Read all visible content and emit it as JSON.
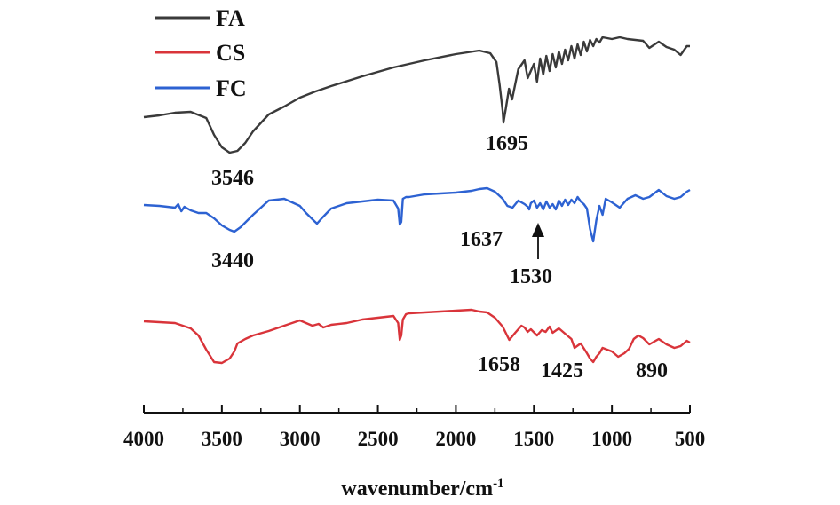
{
  "chart_data": {
    "type": "line",
    "xlabel": "wavenumber/cm",
    "xlabel_superscript": "-1",
    "xlim": [
      4000,
      500
    ],
    "x_reversed": true,
    "x_ticks": [
      "4000",
      "3500",
      "3000",
      "2500",
      "2000",
      "1500",
      "1000",
      "500"
    ],
    "y_axis_visible": false,
    "grid": false,
    "legend_position": "top-left",
    "series": [
      {
        "name": "FA",
        "color": "#3a3a3a",
        "x": [
          4000,
          3900,
          3800,
          3700,
          3600,
          3550,
          3500,
          3450,
          3400,
          3350,
          3300,
          3200,
          3100,
          3000,
          2900,
          2800,
          2600,
          2400,
          2200,
          2000,
          1850,
          1780,
          1740,
          1720,
          1700,
          1695,
          1680,
          1660,
          1640,
          1600,
          1560,
          1540,
          1500,
          1480,
          1460,
          1440,
          1420,
          1400,
          1380,
          1360,
          1340,
          1320,
          1300,
          1280,
          1260,
          1240,
          1220,
          1200,
          1180,
          1160,
          1140,
          1120,
          1100,
          1080,
          1060,
          1000,
          950,
          900,
          850,
          800,
          760,
          700,
          650,
          600,
          560,
          520,
          500
        ],
        "y": [
          132,
          130,
          127,
          126,
          133,
          152,
          166,
          172,
          170,
          161,
          148,
          129,
          120,
          110,
          103,
          97,
          86,
          76,
          68,
          61,
          57,
          60,
          70,
          95,
          125,
          138,
          122,
          100,
          112,
          78,
          68,
          88,
          72,
          92,
          66,
          84,
          63,
          80,
          61,
          76,
          58,
          72,
          56,
          68,
          52,
          66,
          50,
          62,
          47,
          58,
          45,
          52,
          44,
          48,
          42,
          44,
          42,
          44,
          45,
          46,
          54,
          47,
          53,
          56,
          62,
          52,
          52
        ]
      },
      {
        "name": "FC",
        "color": "#2d62d2",
        "x": [
          4000,
          3900,
          3800,
          3780,
          3760,
          3740,
          3700,
          3650,
          3600,
          3550,
          3500,
          3450,
          3420,
          3380,
          3300,
          3200,
          3100,
          3000,
          2960,
          2920,
          2890,
          2860,
          2800,
          2700,
          2600,
          2500,
          2400,
          2370,
          2360,
          2350,
          2340,
          2320,
          2300,
          2200,
          2100,
          2000,
          1900,
          1850,
          1800,
          1750,
          1700,
          1670,
          1637,
          1600,
          1560,
          1540,
          1530,
          1520,
          1500,
          1480,
          1460,
          1440,
          1420,
          1400,
          1380,
          1360,
          1340,
          1320,
          1300,
          1280,
          1260,
          1240,
          1220,
          1200,
          1180,
          1160,
          1140,
          1120,
          1100,
          1080,
          1060,
          1040,
          1000,
          950,
          900,
          850,
          800,
          760,
          700,
          650,
          600,
          560,
          520,
          500
        ],
        "y": [
          231,
          232,
          234,
          230,
          238,
          233,
          237,
          240,
          240,
          246,
          254,
          259,
          261,
          256,
          242,
          226,
          224,
          232,
          240,
          247,
          252,
          246,
          235,
          229,
          227,
          225,
          226,
          235,
          253,
          250,
          224,
          222,
          222,
          219,
          218,
          217,
          215,
          213,
          212,
          216,
          224,
          232,
          234,
          226,
          230,
          233,
          236,
          229,
          226,
          234,
          229,
          236,
          227,
          234,
          230,
          236,
          226,
          232,
          225,
          231,
          225,
          229,
          222,
          227,
          230,
          235,
          258,
          272,
          248,
          232,
          242,
          224,
          228,
          234,
          224,
          220,
          224,
          222,
          214,
          221,
          224,
          222,
          216,
          214
        ]
      },
      {
        "name": "CS",
        "color": "#d9343a",
        "x": [
          4000,
          3900,
          3800,
          3700,
          3650,
          3600,
          3550,
          3500,
          3450,
          3420,
          3400,
          3350,
          3300,
          3200,
          3100,
          3000,
          2960,
          2920,
          2880,
          2850,
          2800,
          2700,
          2600,
          2500,
          2400,
          2370,
          2360,
          2350,
          2340,
          2320,
          2300,
          2200,
          2100,
          2000,
          1900,
          1850,
          1800,
          1750,
          1700,
          1658,
          1620,
          1580,
          1560,
          1540,
          1520,
          1480,
          1450,
          1425,
          1400,
          1380,
          1340,
          1300,
          1260,
          1240,
          1200,
          1160,
          1140,
          1120,
          1100,
          1080,
          1060,
          1000,
          960,
          920,
          890,
          860,
          830,
          800,
          760,
          700,
          650,
          600,
          560,
          520,
          500
        ],
        "y": [
          362,
          363,
          364,
          370,
          378,
          394,
          408,
          409,
          404,
          396,
          387,
          382,
          378,
          373,
          367,
          361,
          364,
          367,
          365,
          369,
          366,
          364,
          360,
          358,
          356,
          364,
          383,
          378,
          360,
          354,
          353,
          352,
          351,
          350,
          349,
          351,
          352,
          358,
          368,
          383,
          375,
          367,
          369,
          374,
          371,
          378,
          372,
          374,
          368,
          375,
          370,
          376,
          382,
          392,
          387,
          398,
          404,
          408,
          402,
          398,
          392,
          396,
          402,
          398,
          393,
          382,
          378,
          381,
          388,
          382,
          388,
          392,
          390,
          384,
          386
        ]
      }
    ],
    "annotations": [
      {
        "text": "3546",
        "series": "FA"
      },
      {
        "text": "1695",
        "series": "FA"
      },
      {
        "text": "3440",
        "series": "FC"
      },
      {
        "text": "1637",
        "series": "FC"
      },
      {
        "text": "1530",
        "series": "FC"
      },
      {
        "text": "1658",
        "series": "CS"
      },
      {
        "text": "1425",
        "series": "CS"
      },
      {
        "text": "890",
        "series": "CS"
      }
    ]
  }
}
